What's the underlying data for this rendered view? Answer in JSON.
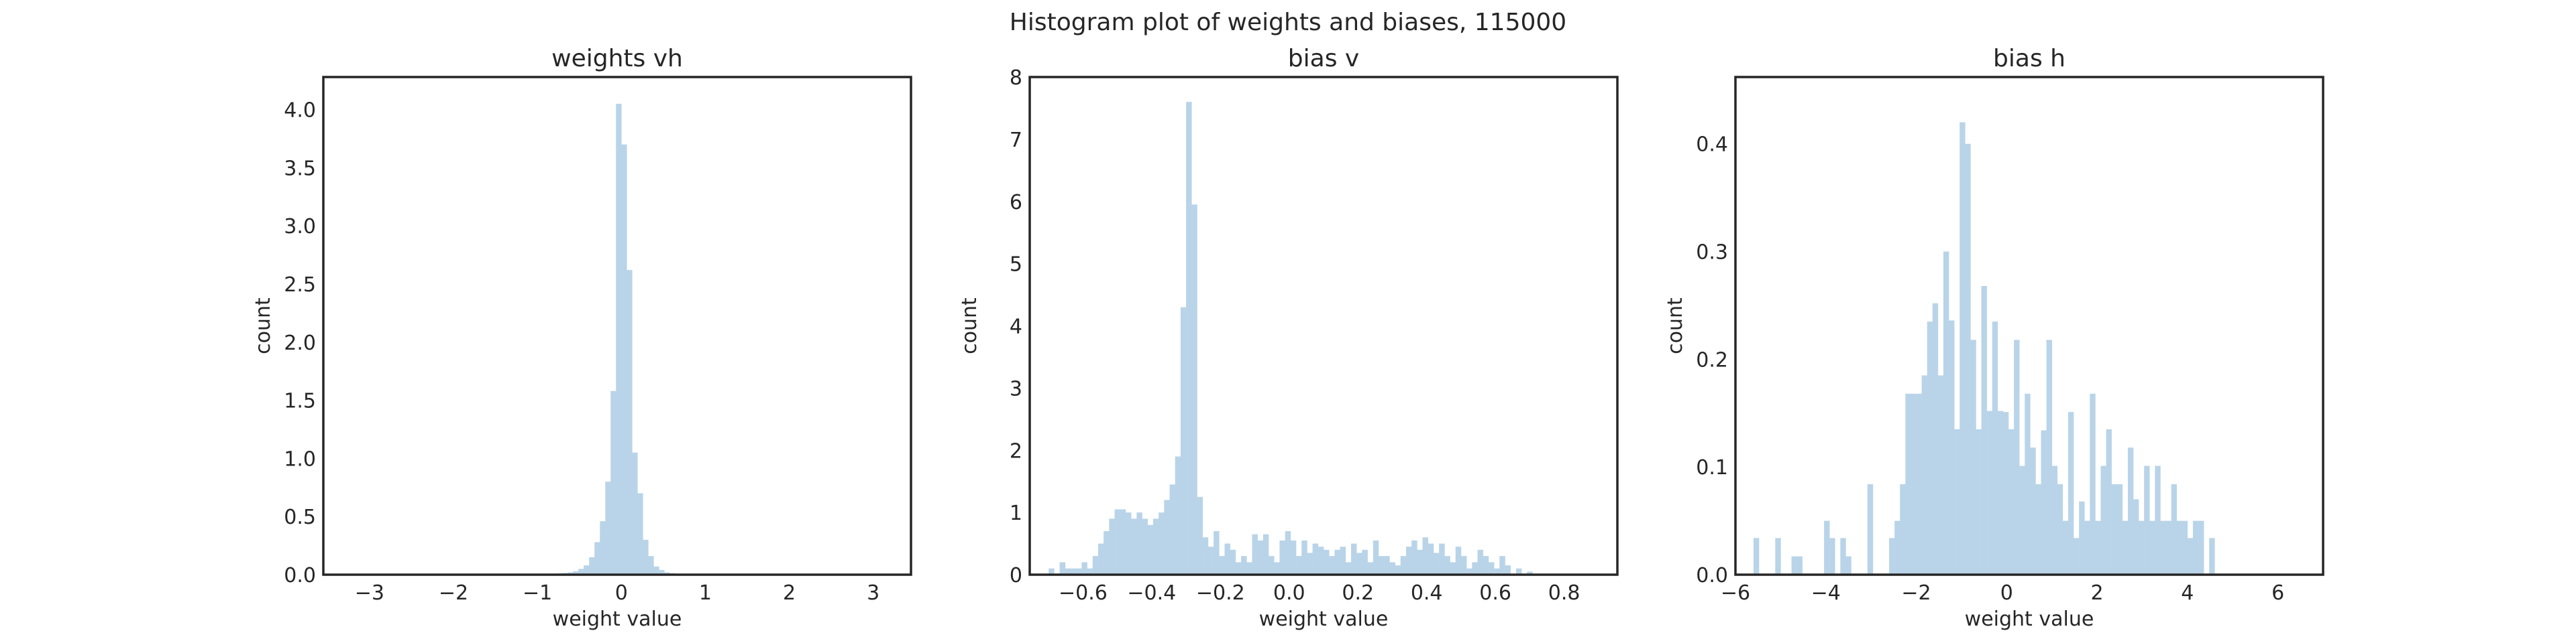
{
  "title": "Histogram plot of weights and biases, 115000",
  "colors": {
    "bar": "#b9d4e8",
    "frame": "#262626",
    "text": "#262626"
  },
  "chart_data": [
    {
      "type": "bar",
      "title": "weights vh",
      "xlabel": "weight value",
      "ylabel": "count",
      "xlim": [
        -3.55,
        3.45
      ],
      "ylim": [
        0,
        4.28
      ],
      "xticks": [
        -3,
        -2,
        -1,
        0,
        1,
        2,
        3
      ],
      "xtick_labels": [
        "−3",
        "−2",
        "−1",
        "0",
        "1",
        "2",
        "3"
      ],
      "yticks": [
        0,
        0.5,
        1,
        1.5,
        2,
        2.5,
        3,
        3.5,
        4
      ],
      "ytick_labels": [
        "0.0",
        "0.5",
        "1.0",
        "1.5",
        "2.0",
        "2.5",
        "3.0",
        "3.5",
        "4.0"
      ],
      "bin_start": -3.2,
      "bin_width": 0.064,
      "values": [
        0.003,
        0.003,
        0.003,
        0.003,
        0.003,
        0.003,
        0.003,
        0.003,
        0.003,
        0.003,
        0.003,
        0.003,
        0.003,
        0.003,
        0.003,
        0.003,
        0.003,
        0.003,
        0.003,
        0.003,
        0.003,
        0.003,
        0.003,
        0.003,
        0.003,
        0.003,
        0.003,
        0.003,
        0.003,
        0.003,
        0.003,
        0.003,
        0.003,
        0.003,
        0.004,
        0.005,
        0.006,
        0.008,
        0.011,
        0.015,
        0.02,
        0.03,
        0.05,
        0.08,
        0.15,
        0.28,
        0.46,
        0.8,
        1.58,
        4.05,
        3.7,
        2.62,
        1.05,
        0.7,
        0.3,
        0.16,
        0.07,
        0.04,
        0.02,
        0.013,
        0.008,
        0.005,
        0.004,
        0.003,
        0.003,
        0.003,
        0.003,
        0.003,
        0.003,
        0.003,
        0.003,
        0.003,
        0.003,
        0.003,
        0.003,
        0.003,
        0.003,
        0.003,
        0.003,
        0.003,
        0.003,
        0.003,
        0.003,
        0.003,
        0.003,
        0.003,
        0.003,
        0.003,
        0.003,
        0.003,
        0.003,
        0.003,
        0.003,
        0.003,
        0.003,
        0.003,
        0.003,
        0.003,
        0.003,
        0.003
      ]
    },
    {
      "type": "bar",
      "title": "bias v",
      "xlabel": "weight value",
      "ylabel": "count",
      "xlim": [
        -0.755,
        0.955
      ],
      "ylim": [
        0,
        8.0
      ],
      "xticks": [
        -0.6,
        -0.4,
        -0.2,
        0.0,
        0.2,
        0.4,
        0.6,
        0.8
      ],
      "xtick_labels": [
        "−0.6",
        "−0.4",
        "−0.2",
        "0.0",
        "0.2",
        "0.4",
        "0.6",
        "0.8"
      ],
      "yticks": [
        0,
        1,
        2,
        3,
        4,
        5,
        6,
        7,
        8
      ],
      "ytick_labels": [
        "0",
        "1",
        "2",
        "3",
        "4",
        "5",
        "6",
        "7",
        "8"
      ],
      "bin_start": -0.7,
      "bin_width": 0.016,
      "values": [
        0.1,
        0.0,
        0.2,
        0.1,
        0.1,
        0.1,
        0.2,
        0.1,
        0.3,
        0.5,
        0.7,
        0.9,
        1.05,
        1.05,
        1.0,
        0.9,
        1.0,
        0.9,
        0.8,
        0.9,
        1.0,
        1.2,
        1.45,
        1.9,
        4.3,
        7.6,
        5.95,
        1.25,
        0.6,
        0.45,
        0.7,
        0.3,
        0.5,
        0.4,
        0.2,
        0.3,
        0.2,
        0.65,
        0.55,
        0.65,
        0.3,
        0.2,
        0.55,
        0.7,
        0.55,
        0.3,
        0.55,
        0.35,
        0.5,
        0.45,
        0.4,
        0.3,
        0.4,
        0.45,
        0.2,
        0.5,
        0.35,
        0.4,
        0.2,
        0.55,
        0.3,
        0.3,
        0.2,
        0.15,
        0.3,
        0.45,
        0.55,
        0.4,
        0.6,
        0.5,
        0.35,
        0.5,
        0.3,
        0.2,
        0.45,
        0.3,
        0.1,
        0.2,
        0.4,
        0.3,
        0.2,
        0.1,
        0.3,
        0.15,
        0.0,
        0.1,
        0.0,
        0.05,
        0.0,
        0.0,
        0.0,
        0.0,
        0.0,
        0.0,
        0.0,
        0.0,
        0.0,
        0.0,
        0.0,
        0.0
      ]
    },
    {
      "type": "bar",
      "title": "bias h",
      "xlabel": "weight value",
      "ylabel": "count",
      "xlim": [
        -6.0,
        7.0
      ],
      "ylim": [
        0,
        0.462
      ],
      "xticks": [
        -6,
        -4,
        -2,
        0,
        2,
        4,
        6
      ],
      "xtick_labels": [
        "−6",
        "−4",
        "−2",
        "0",
        "2",
        "4",
        "6"
      ],
      "yticks": [
        0,
        0.1,
        0.2,
        0.3,
        0.4
      ],
      "ytick_labels": [
        "0.0",
        "0.1",
        "0.2",
        "0.3",
        "0.4"
      ],
      "bin_start": -5.6,
      "bin_width": 0.12,
      "values": [
        0.034,
        0.0,
        0.0,
        0.0,
        0.034,
        0.0,
        0.0,
        0.017,
        0.017,
        0.0,
        0.0,
        0.0,
        0.0,
        0.05,
        0.034,
        0.0,
        0.034,
        0.017,
        0.0,
        0.0,
        0.0,
        0.084,
        0.0,
        0.0,
        0.0,
        0.034,
        0.05,
        0.084,
        0.168,
        0.168,
        0.168,
        0.185,
        0.235,
        0.252,
        0.185,
        0.3,
        0.236,
        0.135,
        0.42,
        0.4,
        0.218,
        0.135,
        0.268,
        0.152,
        0.235,
        0.152,
        0.151,
        0.135,
        0.218,
        0.101,
        0.168,
        0.118,
        0.084,
        0.134,
        0.218,
        0.101,
        0.084,
        0.05,
        0.151,
        0.034,
        0.068,
        0.05,
        0.168,
        0.05,
        0.101,
        0.135,
        0.084,
        0.084,
        0.05,
        0.118,
        0.07,
        0.05,
        0.101,
        0.05,
        0.101,
        0.05,
        0.05,
        0.084,
        0.05,
        0.05,
        0.034,
        0.05,
        0.05,
        0.0,
        0.034,
        0.0,
        0.0,
        0.0,
        0.0,
        0.0,
        0.0,
        0.0,
        0.0,
        0.0,
        0.0,
        0.0,
        0.0,
        0.0,
        0.0,
        0.0
      ]
    }
  ]
}
